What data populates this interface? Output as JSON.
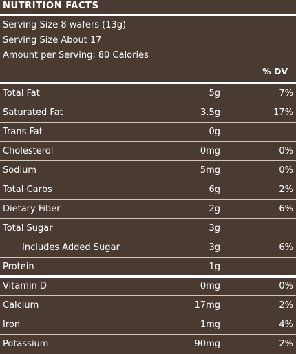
{
  "label": {
    "title": "NUTRITION FACTS",
    "serving_size": "Serving Size 8 wafers (13g)",
    "servings": "Serving Size About 17",
    "amount_per_serving": "Amount per Serving: 80 Calories",
    "dv_header": "% DV"
  },
  "nutrients": [
    {
      "name": "Total Fat",
      "amount": "5g",
      "dv": "7%"
    },
    {
      "name": "Saturated Fat",
      "amount": "3.5g",
      "dv": "17%"
    },
    {
      "name": "Trans Fat",
      "amount": "0g",
      "dv": ""
    },
    {
      "name": "Cholesterol",
      "amount": "0mg",
      "dv": "0%"
    },
    {
      "name": "Sodium",
      "amount": "5mg",
      "dv": "0%"
    },
    {
      "name": "Total Carbs",
      "amount": "6g",
      "dv": "2%"
    },
    {
      "name": "Dietary Fiber",
      "amount": "2g",
      "dv": "6%"
    },
    {
      "name": "Total Sugar",
      "amount": "3g",
      "dv": ""
    },
    {
      "name": "Includes Added Sugar",
      "amount": "3g",
      "dv": "6%",
      "indent": true
    },
    {
      "name": "Protein",
      "amount": "1g",
      "dv": "",
      "thick_after": true
    },
    {
      "name": "Vitamin D",
      "amount": "0mg",
      "dv": "0%"
    },
    {
      "name": "Calcium",
      "amount": "17mg",
      "dv": "2%"
    },
    {
      "name": "Iron",
      "amount": "1mg",
      "dv": "4%"
    },
    {
      "name": "Potassium",
      "amount": "90mg",
      "dv": "2%"
    }
  ],
  "colors": {
    "background": "#4a3b32",
    "text": "#ffffff"
  }
}
